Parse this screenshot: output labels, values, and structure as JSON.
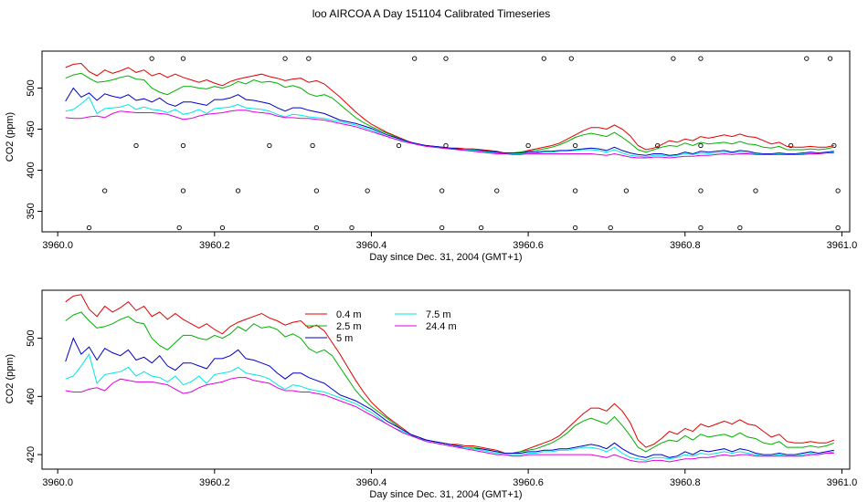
{
  "title": "loo AIRCOA A  Day 151104  Calibrated Timeseries",
  "series_colors": {
    "0.4 m": "#e00000",
    "2.5 m": "#00b000",
    "5 m": "#0000c8",
    "7.5 m": "#00e5e5",
    "24.4 m": "#e000e0"
  },
  "chart_data": [
    {
      "type": "line",
      "xlabel": "Day since Dec. 31, 2004 (GMT+1)",
      "ylabel": "CO2 (ppm)",
      "xlim": [
        3959.98,
        3961.01
      ],
      "ylim": [
        325,
        545
      ],
      "x_ticks": [
        "3960.0",
        "3960.2",
        "3960.4",
        "3960.6",
        "3960.8",
        "3961.0"
      ],
      "y_ticks": [
        "350",
        "400",
        "450",
        "500"
      ],
      "x": [
        3960.01,
        3960.02,
        3960.03,
        3960.04,
        3960.05,
        3960.06,
        3960.07,
        3960.08,
        3960.09,
        3960.1,
        3960.11,
        3960.12,
        3960.13,
        3960.14,
        3960.15,
        3960.16,
        3960.17,
        3960.18,
        3960.19,
        3960.2,
        3960.21,
        3960.22,
        3960.23,
        3960.24,
        3960.25,
        3960.26,
        3960.27,
        3960.28,
        3960.29,
        3960.3,
        3960.31,
        3960.32,
        3960.33,
        3960.34,
        3960.35,
        3960.36,
        3960.37,
        3960.38,
        3960.39,
        3960.4,
        3960.41,
        3960.42,
        3960.43,
        3960.44,
        3960.45,
        3960.46,
        3960.47,
        3960.48,
        3960.49,
        3960.5,
        3960.51,
        3960.52,
        3960.53,
        3960.54,
        3960.55,
        3960.56,
        3960.57,
        3960.58,
        3960.59,
        3960.6,
        3960.61,
        3960.62,
        3960.63,
        3960.64,
        3960.65,
        3960.66,
        3960.67,
        3960.68,
        3960.69,
        3960.7,
        3960.71,
        3960.72,
        3960.73,
        3960.74,
        3960.75,
        3960.76,
        3960.77,
        3960.78,
        3960.79,
        3960.8,
        3960.81,
        3960.82,
        3960.83,
        3960.84,
        3960.85,
        3960.86,
        3960.87,
        3960.88,
        3960.89,
        3960.9,
        3960.91,
        3960.92,
        3960.93,
        3960.94,
        3960.95,
        3960.96,
        3960.97,
        3960.98,
        3960.99
      ],
      "series": [
        {
          "name": "0.4 m",
          "color": "#e00000",
          "values": [
            525,
            529,
            530,
            520,
            515,
            522,
            518,
            521,
            525,
            519,
            522,
            515,
            518,
            513,
            517,
            513,
            510,
            507,
            510,
            506,
            503,
            508,
            511,
            513,
            515,
            517,
            514,
            512,
            509,
            511,
            512,
            507,
            509,
            505,
            497,
            489,
            480,
            471,
            463,
            456,
            451,
            446,
            442,
            438,
            434,
            431,
            430,
            429,
            428,
            427,
            427,
            426,
            426,
            425,
            424,
            423,
            421,
            421,
            422,
            424,
            426,
            428,
            430,
            433,
            438,
            443,
            448,
            452,
            452,
            450,
            455,
            450,
            442,
            430,
            425,
            427,
            431,
            436,
            434,
            438,
            436,
            441,
            439,
            441,
            443,
            441,
            444,
            441,
            440,
            436,
            432,
            434,
            429,
            428,
            428,
            429,
            428,
            428,
            430
          ]
        },
        {
          "name": "2.5 m",
          "color": "#00b000",
          "values": [
            512,
            516,
            518,
            512,
            507,
            508,
            510,
            513,
            515,
            511,
            510,
            500,
            495,
            492,
            497,
            502,
            502,
            500,
            499,
            502,
            500,
            503,
            508,
            505,
            510,
            507,
            508,
            506,
            501,
            503,
            500,
            493,
            490,
            492,
            488,
            480,
            472,
            464,
            458,
            453,
            449,
            445,
            441,
            437,
            434,
            431,
            430,
            429,
            428,
            427,
            426,
            425,
            425,
            424,
            423,
            422,
            421,
            421,
            422,
            423,
            424,
            426,
            428,
            431,
            435,
            440,
            443,
            445,
            443,
            441,
            446,
            440,
            433,
            425,
            422,
            425,
            428,
            430,
            429,
            433,
            430,
            434,
            432,
            433,
            434,
            432,
            435,
            432,
            431,
            428,
            427,
            429,
            425,
            425,
            425,
            426,
            425,
            426,
            428
          ]
        },
        {
          "name": "5 m",
          "color": "#0000c8",
          "values": [
            484,
            500,
            489,
            494,
            485,
            493,
            490,
            488,
            492,
            485,
            487,
            483,
            488,
            481,
            478,
            483,
            483,
            481,
            479,
            486,
            486,
            488,
            492,
            486,
            485,
            483,
            481,
            476,
            472,
            476,
            476,
            473,
            471,
            469,
            465,
            461,
            459,
            457,
            454,
            451,
            447,
            443,
            440,
            437,
            434,
            432,
            430,
            429,
            428,
            427,
            426,
            425,
            424,
            424,
            423,
            422,
            421,
            421,
            421,
            422,
            422,
            423,
            423,
            424,
            424,
            425,
            426,
            427,
            426,
            424,
            428,
            424,
            421,
            419,
            418,
            420,
            420,
            418,
            419,
            422,
            420,
            423,
            422,
            423,
            424,
            422,
            424,
            423,
            421,
            420,
            420,
            421,
            420,
            420,
            421,
            422,
            421,
            422,
            423
          ]
        },
        {
          "name": "7.5 m",
          "color": "#00e5e5",
          "values": [
            472,
            474,
            481,
            489,
            469,
            475,
            476,
            477,
            480,
            474,
            477,
            474,
            473,
            470,
            474,
            468,
            470,
            474,
            469,
            475,
            476,
            477,
            480,
            476,
            475,
            474,
            472,
            468,
            465,
            468,
            467,
            465,
            464,
            463,
            461,
            459,
            457,
            455,
            452,
            449,
            445,
            441,
            438,
            436,
            433,
            431,
            429,
            428,
            427,
            426,
            425,
            425,
            424,
            423,
            422,
            421,
            420,
            420,
            420,
            421,
            421,
            422,
            422,
            423,
            423,
            424,
            425,
            425,
            424,
            422,
            425,
            421,
            418,
            417,
            416,
            418,
            418,
            417,
            418,
            420,
            419,
            421,
            420,
            421,
            422,
            421,
            422,
            421,
            420,
            419,
            419,
            420,
            419,
            419,
            420,
            421,
            420,
            421,
            422
          ]
        },
        {
          "name": "24.4 m",
          "color": "#e000e0",
          "values": [
            464,
            463,
            463,
            465,
            466,
            464,
            469,
            472,
            471,
            470,
            470,
            470,
            469,
            468,
            465,
            462,
            463,
            466,
            468,
            469,
            470,
            472,
            473,
            473,
            471,
            470,
            469,
            466,
            464,
            464,
            463,
            463,
            462,
            461,
            459,
            457,
            455,
            453,
            450,
            447,
            444,
            441,
            438,
            435,
            433,
            431,
            429,
            428,
            427,
            426,
            425,
            424,
            423,
            422,
            421,
            420,
            420,
            419,
            419,
            420,
            420,
            420,
            420,
            420,
            420,
            420,
            420,
            420,
            419,
            418,
            420,
            418,
            416,
            415,
            415,
            416,
            416,
            415,
            416,
            417,
            417,
            418,
            418,
            419,
            420,
            419,
            420,
            420,
            419,
            419,
            419,
            419,
            419,
            419,
            419,
            420,
            420,
            421,
            421
          ]
        }
      ],
      "points": [
        {
          "x": 3960.04,
          "y": 330
        },
        {
          "x": 3960.06,
          "y": 375
        },
        {
          "x": 3960.1,
          "y": 430
        },
        {
          "x": 3960.12,
          "y": 536
        },
        {
          "x": 3960.155,
          "y": 330
        },
        {
          "x": 3960.16,
          "y": 375
        },
        {
          "x": 3960.16,
          "y": 430
        },
        {
          "x": 3960.16,
          "y": 536
        },
        {
          "x": 3960.21,
          "y": 330
        },
        {
          "x": 3960.23,
          "y": 375
        },
        {
          "x": 3960.27,
          "y": 430
        },
        {
          "x": 3960.29,
          "y": 536
        },
        {
          "x": 3960.32,
          "y": 536
        },
        {
          "x": 3960.325,
          "y": 430
        },
        {
          "x": 3960.33,
          "y": 375
        },
        {
          "x": 3960.33,
          "y": 330
        },
        {
          "x": 3960.375,
          "y": 330
        },
        {
          "x": 3960.395,
          "y": 375
        },
        {
          "x": 3960.435,
          "y": 430
        },
        {
          "x": 3960.455,
          "y": 536
        },
        {
          "x": 3960.49,
          "y": 330
        },
        {
          "x": 3960.49,
          "y": 375
        },
        {
          "x": 3960.495,
          "y": 430
        },
        {
          "x": 3960.495,
          "y": 536
        },
        {
          "x": 3960.54,
          "y": 330
        },
        {
          "x": 3960.56,
          "y": 375
        },
        {
          "x": 3960.6,
          "y": 430
        },
        {
          "x": 3960.62,
          "y": 536
        },
        {
          "x": 3960.655,
          "y": 536
        },
        {
          "x": 3960.66,
          "y": 430
        },
        {
          "x": 3960.66,
          "y": 375
        },
        {
          "x": 3960.66,
          "y": 330
        },
        {
          "x": 3960.705,
          "y": 330
        },
        {
          "x": 3960.725,
          "y": 375
        },
        {
          "x": 3960.765,
          "y": 430
        },
        {
          "x": 3960.785,
          "y": 536
        },
        {
          "x": 3960.82,
          "y": 536
        },
        {
          "x": 3960.82,
          "y": 430
        },
        {
          "x": 3960.82,
          "y": 375
        },
        {
          "x": 3960.82,
          "y": 330
        },
        {
          "x": 3960.87,
          "y": 330
        },
        {
          "x": 3960.89,
          "y": 375
        },
        {
          "x": 3960.935,
          "y": 430
        },
        {
          "x": 3960.955,
          "y": 536
        },
        {
          "x": 3960.985,
          "y": 536
        },
        {
          "x": 3960.99,
          "y": 430
        },
        {
          "x": 3960.995,
          "y": 375
        },
        {
          "x": 3960.995,
          "y": 330
        }
      ]
    },
    {
      "type": "line",
      "xlabel": "Day since Dec. 31, 2004 (GMT+1)",
      "ylabel": "CO2 (ppm)",
      "xlim": [
        3959.98,
        3961.01
      ],
      "ylim": [
        410,
        533
      ],
      "x_ticks": [
        "3960.0",
        "3960.2",
        "3960.4",
        "3960.6",
        "3960.8",
        "3961.0"
      ],
      "y_ticks": [
        "420",
        "460",
        "500"
      ],
      "legend": {
        "position": "top-center",
        "entries": [
          "0.4 m",
          "2.5 m",
          "5 m",
          "7.5 m",
          "24.4 m"
        ]
      },
      "series_ref": "same series as the first chart"
    }
  ]
}
